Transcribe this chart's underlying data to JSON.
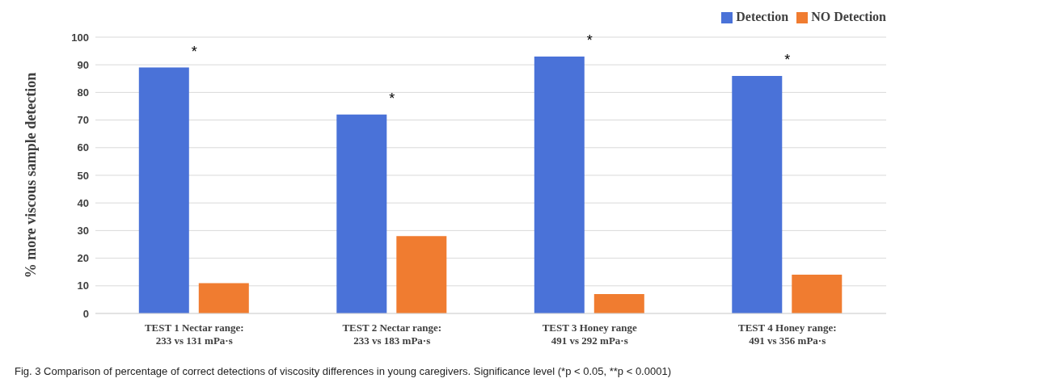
{
  "chart_data": {
    "type": "bar",
    "ylabel": "% more viscous sample detection",
    "categories": [
      "TEST 1 Nectar range:\n233 vs 131 mPa·s",
      "TEST 2 Nectar range:\n233 vs 183 mPa·s",
      "TEST 3 Honey range\n491 vs 292 mPa·s",
      "TEST 4 Honey range:\n491 vs 356 mPa·s"
    ],
    "series": [
      {
        "name": "Detection",
        "color": "#4a72d8",
        "values": [
          89,
          72,
          93,
          86
        ]
      },
      {
        "name": "NO Detection",
        "color": "#f07c30",
        "values": [
          11,
          28,
          7,
          14
        ]
      }
    ],
    "ylim": [
      0,
      100
    ],
    "yticks": [
      0,
      10,
      20,
      30,
      40,
      50,
      60,
      70,
      80,
      90,
      100
    ],
    "grid": "y",
    "legend": "top right",
    "annotations": [
      "*",
      "*",
      "*",
      "*",
      "Fig. 3  Comparison of percentage of correct detections of viscosity differences in young caregivers. Significance level (*p < 0.05, **p < 0.0001)"
    ]
  }
}
